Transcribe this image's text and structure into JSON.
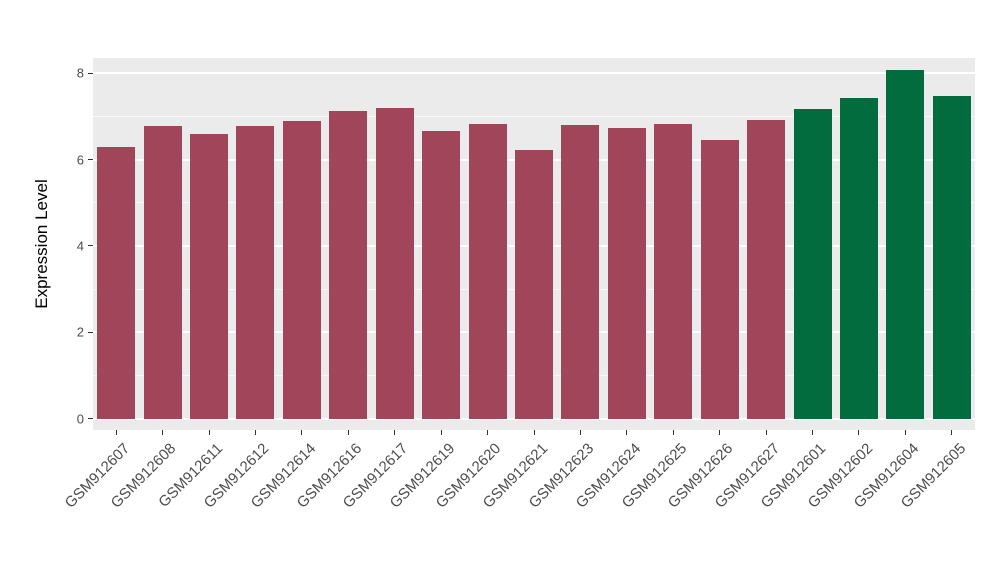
{
  "chart_data": {
    "type": "bar",
    "ylabel": "Expression Level",
    "xlabel": "",
    "ylim": [
      0,
      8.4
    ],
    "yticks": [
      0,
      2,
      4,
      6,
      8
    ],
    "yticks_minor": [
      1,
      3,
      5,
      7
    ],
    "grid": "on",
    "legend": "none",
    "categories": [
      "GSM912607",
      "GSM912608",
      "GSM912611",
      "GSM912612",
      "GSM912614",
      "GSM912616",
      "GSM912617",
      "GSM912619",
      "GSM912620",
      "GSM912621",
      "GSM912623",
      "GSM912624",
      "GSM912625",
      "GSM912626",
      "GSM912627",
      "GSM912601",
      "GSM912602",
      "GSM912604",
      "GSM912605"
    ],
    "values": [
      6.28,
      6.77,
      6.6,
      6.77,
      6.9,
      7.12,
      7.2,
      6.66,
      6.83,
      6.23,
      6.8,
      6.74,
      6.82,
      6.45,
      6.91,
      7.17,
      7.43,
      8.08,
      7.47
    ],
    "bar_colors": [
      "#A1465A",
      "#A1465A",
      "#A1465A",
      "#A1465A",
      "#A1465A",
      "#A1465A",
      "#A1465A",
      "#A1465A",
      "#A1465A",
      "#A1465A",
      "#A1465A",
      "#A1465A",
      "#A1465A",
      "#A1465A",
      "#A1465A",
      "#036C3F",
      "#036C3F",
      "#036C3F",
      "#036C3F"
    ],
    "groups": [
      {
        "color": "#A1465A",
        "count": 15
      },
      {
        "color": "#036C3F",
        "count": 4
      }
    ]
  },
  "style": {
    "panel_bg": "#EBEBEB",
    "grid_major": "#FFFFFF",
    "grid_minor": "rgba(255,255,255,0.65)",
    "tick_color": "#333333",
    "tick_label_color": "#4d4d4d",
    "axis_title_color": "#000000",
    "figure_bg": "#FFFFFF"
  }
}
